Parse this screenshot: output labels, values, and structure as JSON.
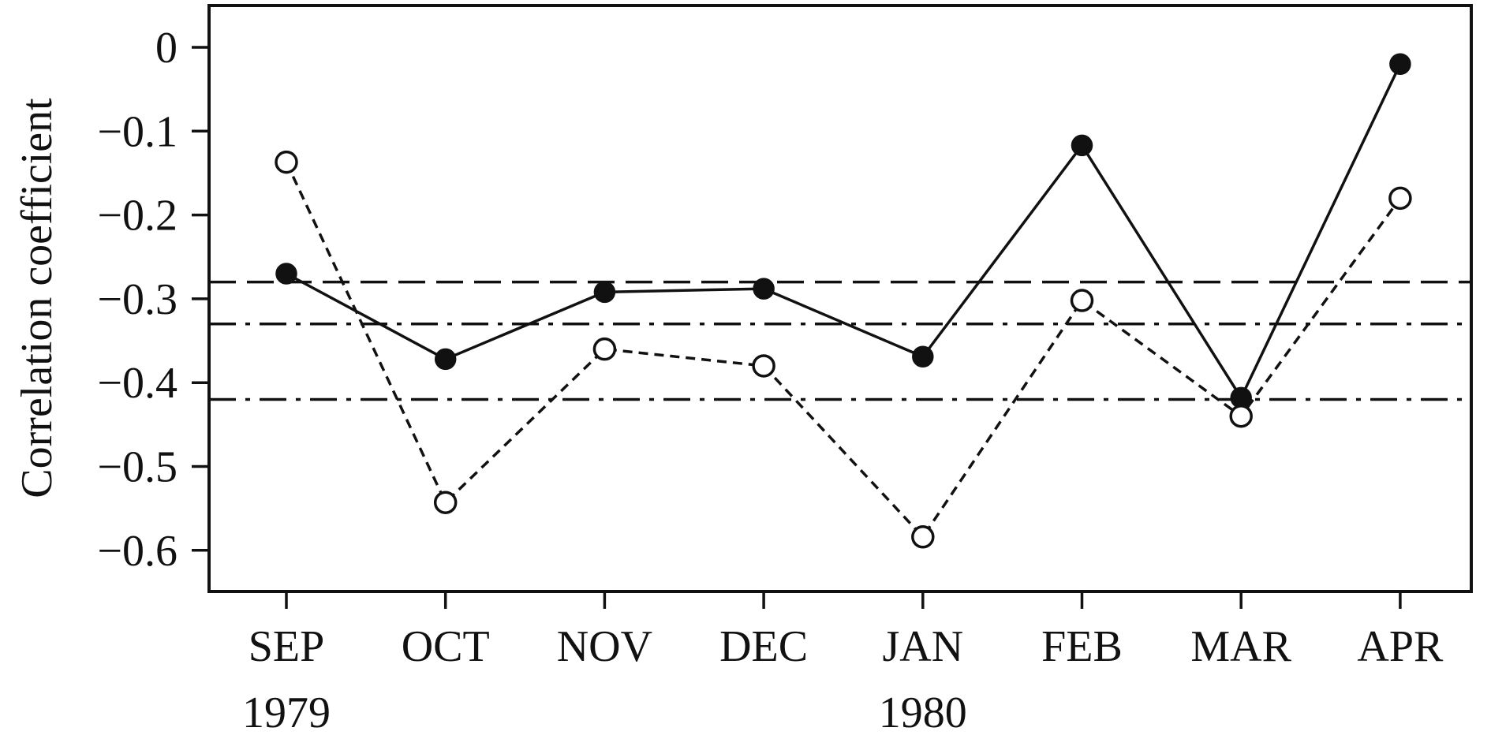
{
  "chart_data": {
    "type": "line",
    "title": "",
    "xlabel": "",
    "ylabel": "Correlation coefficient",
    "categories": [
      "SEP",
      "OCT",
      "NOV",
      "DEC",
      "JAN",
      "FEB",
      "MAR",
      "APR"
    ],
    "year_labels": [
      {
        "category": "SEP",
        "text": "1979"
      },
      {
        "category": "JAN",
        "text": "1980"
      }
    ],
    "yticks": [
      0,
      -0.1,
      -0.2,
      -0.3,
      -0.4,
      -0.5,
      -0.6
    ],
    "ytick_labels": [
      "0",
      "−0.1",
      "−0.2",
      "−0.3",
      "−0.4",
      "−0.5",
      "−0.6"
    ],
    "ylim": [
      -0.65,
      0.05
    ],
    "grid": false,
    "series": [
      {
        "marker": "filled-circle",
        "line_style": "solid",
        "values": [
          -0.27,
          -0.372,
          -0.292,
          -0.288,
          -0.369,
          -0.117,
          -0.418,
          -0.02
        ]
      },
      {
        "marker": "open-circle",
        "line_style": "dashed",
        "values": [
          -0.137,
          -0.543,
          -0.36,
          -0.38,
          -0.584,
          -0.302,
          -0.44,
          -0.18
        ]
      }
    ],
    "reference_lines": [
      {
        "y": -0.28,
        "style": "dashed"
      },
      {
        "y": -0.33,
        "style": "dash-dot"
      },
      {
        "y": -0.42,
        "style": "dash-dot"
      }
    ],
    "colors": {
      "ink": "#111111",
      "background": "#ffffff"
    }
  }
}
